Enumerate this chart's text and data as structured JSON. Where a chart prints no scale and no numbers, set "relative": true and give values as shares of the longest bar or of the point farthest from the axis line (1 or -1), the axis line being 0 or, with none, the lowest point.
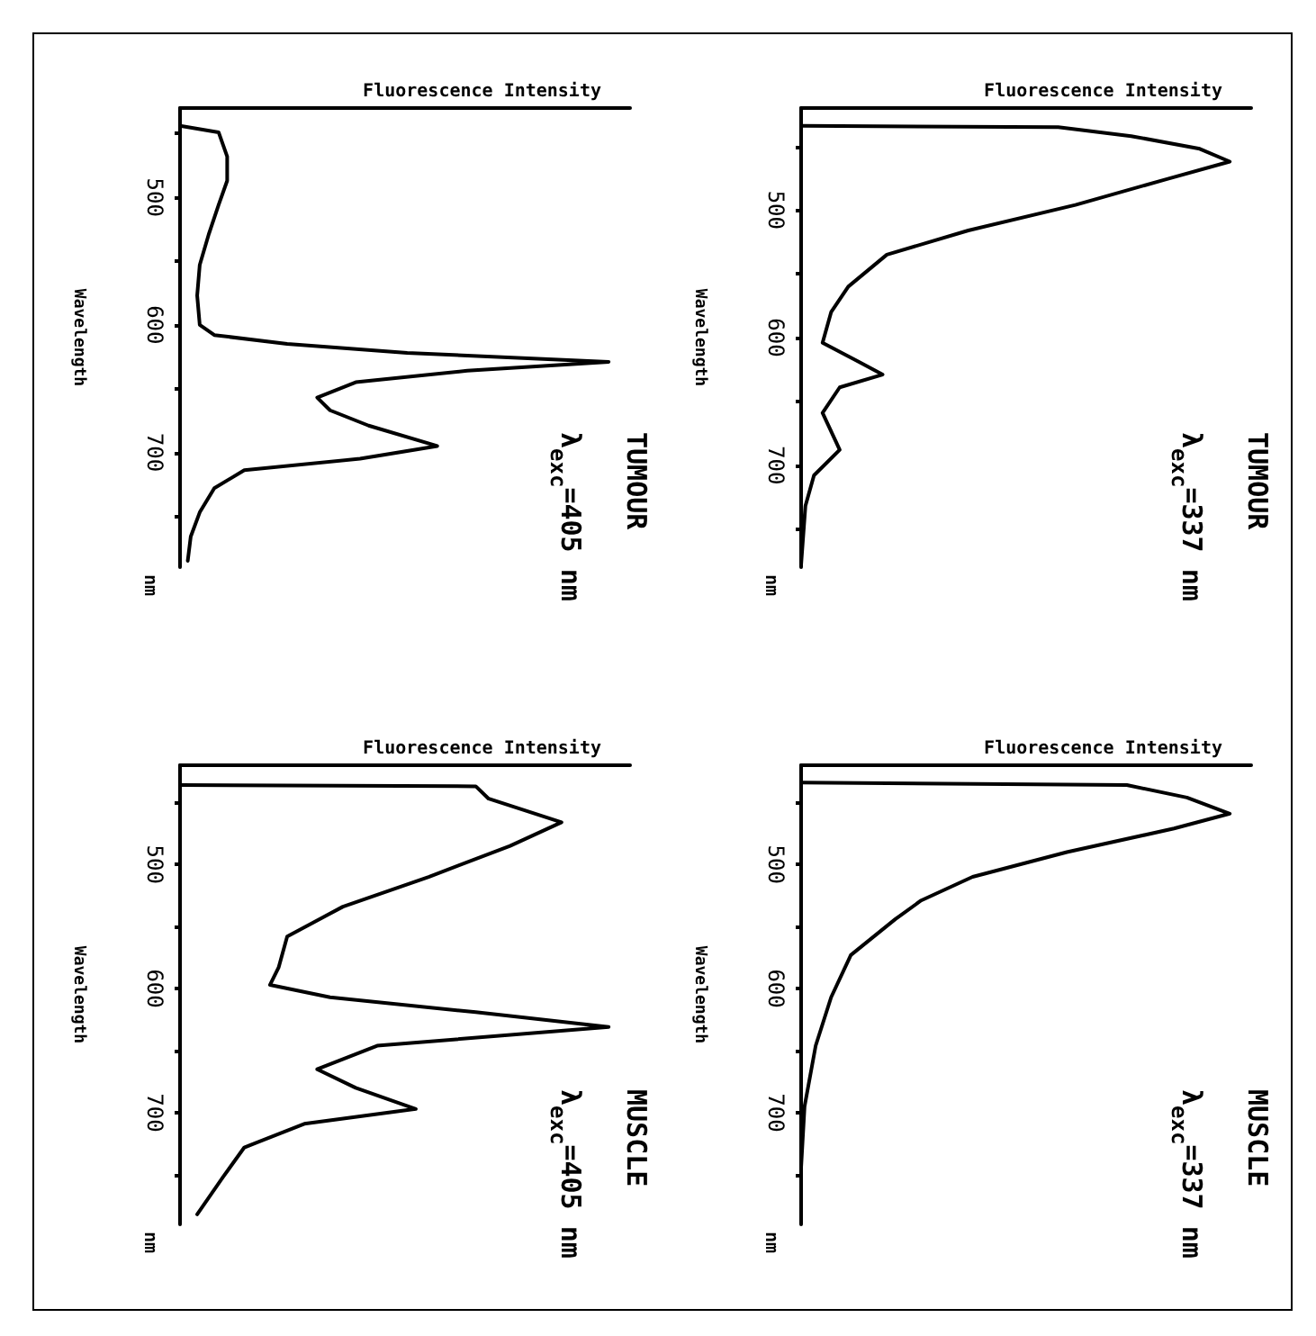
{
  "chart_data": [
    {
      "type": "line",
      "orientation": "horizontal",
      "xlabel": "Fluorescence Intensity",
      "ylabel": "Wavelength",
      "annotations": [
        "nm",
        "TUMOUR",
        "λ$_{exc}$=405 nm"
      ],
      "relative": true,
      "ylim": [
        790,
        430
      ],
      "yticks": [
        {
          "value": 450,
          "label": null
        },
        500,
        {
          "value": 550,
          "label": null
        },
        600,
        {
          "value": 650,
          "label": null
        },
        700,
        {
          "value": 750,
          "label": null
        }
      ],
      "series": [
        {
          "color": "#000000",
          "x": [
            444,
            449,
            468,
            487,
            506,
            529,
            553,
            577,
            600,
            608,
            615,
            622,
            629,
            636,
            645,
            657,
            667,
            679,
            695,
            705,
            714,
            728,
            747,
            766,
            785
          ],
          "values": [
            0,
            0.09,
            0.11,
            0.11,
            0.09,
            0.067,
            0.046,
            0.04,
            0.046,
            0.08,
            0.25,
            0.53,
            1,
            0.67,
            0.41,
            0.32,
            0.35,
            0.44,
            0.6,
            0.42,
            0.15,
            0.08,
            0.046,
            0.025,
            0.018
          ]
        }
      ]
    },
    {
      "type": "line",
      "orientation": "horizontal",
      "xlabel": "Fluorescence Intensity",
      "ylabel": "Wavelength",
      "annotations": [
        "nm",
        "TUMOUR",
        "λ$_{exc}$=337 nm"
      ],
      "relative": true,
      "ylim": [
        780,
        420
      ],
      "yticks": [
        {
          "value": 450,
          "label": null
        },
        500,
        {
          "value": 550,
          "label": null
        },
        600,
        {
          "value": 650,
          "label": null
        },
        700,
        {
          "value": 750,
          "label": null
        }
      ],
      "series": [
        {
          "color": "#000000",
          "x": [
            434,
            435,
            442,
            452,
            462,
            476,
            496,
            516,
            535,
            560,
            580,
            604,
            619,
            629,
            639,
            659,
            688,
            708,
            732,
            778
          ],
          "values": [
            0,
            0.6,
            0.77,
            0.93,
            1,
            0.85,
            0.64,
            0.39,
            0.2,
            0.11,
            0.07,
            0.05,
            0.135,
            0.19,
            0.09,
            0.05,
            0.09,
            0.03,
            0.01,
            0
          ]
        }
      ]
    },
    {
      "type": "line",
      "orientation": "horizontal",
      "xlabel": "Fluorescence Intensity",
      "ylabel": "Wavelength",
      "annotations": [
        "nm",
        "MUSCLE",
        "λ$_{exc}$=405 nm"
      ],
      "relative": true,
      "ylim": [
        790,
        420
      ],
      "yticks": [
        {
          "value": 450,
          "label": null
        },
        500,
        {
          "value": 550,
          "label": null
        },
        600,
        {
          "value": 650,
          "label": null
        },
        700,
        {
          "value": 750,
          "label": null
        }
      ],
      "series": [
        {
          "color": "#000000",
          "x": [
            436,
            437,
            447,
            466,
            485,
            510,
            534,
            558,
            583,
            597,
            607,
            619,
            631,
            646,
            665,
            680,
            697,
            709,
            728,
            752,
            782
          ],
          "values": [
            0,
            0.69,
            0.72,
            0.89,
            0.77,
            0.58,
            0.38,
            0.25,
            0.23,
            0.21,
            0.35,
            0.69,
            1,
            0.46,
            0.32,
            0.41,
            0.55,
            0.29,
            0.15,
            0.1,
            0.04
          ]
        }
      ]
    },
    {
      "type": "line",
      "orientation": "horizontal",
      "xlabel": "Fluorescence Intensity",
      "ylabel": "Wavelength",
      "annotations": [
        "nm",
        "MUSCLE",
        "λ$_{exc}$=337 nm"
      ],
      "relative": true,
      "ylim": [
        790,
        420
      ],
      "yticks": [
        {
          "value": 450,
          "label": null
        },
        500,
        {
          "value": 550,
          "label": null
        },
        600,
        {
          "value": 650,
          "label": null
        },
        700,
        {
          "value": 750,
          "label": null
        }
      ],
      "series": [
        {
          "color": "#000000",
          "x": [
            434,
            436,
            446,
            459,
            471,
            490,
            510,
            529,
            544,
            573,
            607,
            646,
            695,
            744,
            788
          ],
          "values": [
            0,
            0.76,
            0.9,
            1,
            0.87,
            0.62,
            0.4,
            0.28,
            0.22,
            0.116,
            0.07,
            0.034,
            0.008,
            0,
            0
          ]
        }
      ]
    }
  ]
}
